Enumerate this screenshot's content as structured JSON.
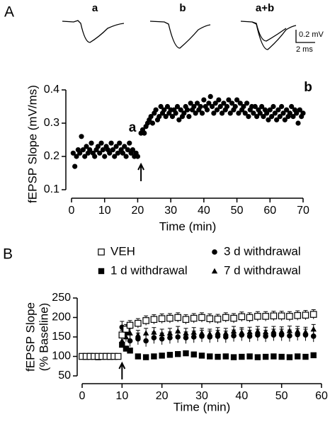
{
  "panels": [
    "A",
    "B"
  ],
  "traces": {
    "labels": [
      "a",
      "b",
      "a+b"
    ],
    "scale_y": "0.2 mV",
    "scale_x": "2 ms"
  },
  "chart_data": [
    {
      "type": "scatter",
      "x_label": "Time (min)",
      "y_label": "fEPSP Slope (mV/ms)",
      "annotations": [
        "a",
        "b"
      ],
      "arrow_x": 21,
      "color": "#000000",
      "x": [
        0.5,
        1,
        1.5,
        2,
        2.5,
        3,
        3.5,
        4,
        4.5,
        5,
        5.5,
        6,
        6.5,
        7,
        7.5,
        8,
        8.5,
        9,
        9.5,
        10,
        10.5,
        11,
        11.5,
        12,
        12.5,
        13,
        13.5,
        14,
        14.5,
        15,
        15.5,
        16,
        16.5,
        17,
        17.5,
        18,
        18.5,
        19,
        19.5,
        20,
        21,
        21.5,
        22,
        22.5,
        23,
        23.5,
        24,
        24.5,
        25,
        25.5,
        26,
        26.5,
        27,
        27.5,
        28,
        28.5,
        29,
        29.5,
        30,
        30.5,
        31,
        31.5,
        32,
        32.5,
        33,
        33.5,
        34,
        34.5,
        35,
        35.5,
        36,
        36.5,
        37,
        37.5,
        38,
        38.5,
        39,
        39.5,
        40,
        40.5,
        41,
        41.5,
        42,
        42.5,
        43,
        43.5,
        44,
        44.5,
        45,
        45.5,
        46,
        46.5,
        47,
        47.5,
        48,
        48.5,
        49,
        49.5,
        50,
        50.5,
        51,
        51.5,
        52,
        52.5,
        53,
        53.5,
        54,
        54.5,
        55,
        55.5,
        56,
        56.5,
        57,
        57.5,
        58,
        58.5,
        59,
        59.5,
        60,
        60.5,
        61,
        61.5,
        62,
        62.5,
        63,
        63.5,
        64,
        64.5,
        65,
        65.5,
        66,
        66.5,
        67,
        67.5,
        68,
        68.5,
        69,
        69.5,
        70
      ],
      "values": [
        0.21,
        0.17,
        0.2,
        0.22,
        0.21,
        0.26,
        0.22,
        0.2,
        0.23,
        0.21,
        0.22,
        0.24,
        0.21,
        0.2,
        0.22,
        0.23,
        0.21,
        0.24,
        0.22,
        0.2,
        0.23,
        0.22,
        0.21,
        0.24,
        0.22,
        0.2,
        0.23,
        0.21,
        0.24,
        0.22,
        0.21,
        0.23,
        0.2,
        0.22,
        0.24,
        0.21,
        0.22,
        0.2,
        0.21,
        0.2,
        0.27,
        0.28,
        0.27,
        0.29,
        0.3,
        0.31,
        0.32,
        0.3,
        0.33,
        0.34,
        0.31,
        0.32,
        0.35,
        0.33,
        0.34,
        0.32,
        0.35,
        0.33,
        0.34,
        0.32,
        0.34,
        0.33,
        0.35,
        0.31,
        0.34,
        0.32,
        0.33,
        0.35,
        0.34,
        0.32,
        0.36,
        0.34,
        0.35,
        0.33,
        0.36,
        0.34,
        0.35,
        0.33,
        0.37,
        0.35,
        0.34,
        0.36,
        0.38,
        0.35,
        0.33,
        0.36,
        0.34,
        0.37,
        0.35,
        0.33,
        0.36,
        0.34,
        0.35,
        0.37,
        0.33,
        0.36,
        0.34,
        0.35,
        0.37,
        0.33,
        0.36,
        0.34,
        0.35,
        0.33,
        0.36,
        0.32,
        0.34,
        0.35,
        0.33,
        0.35,
        0.32,
        0.34,
        0.33,
        0.35,
        0.32,
        0.34,
        0.33,
        0.31,
        0.34,
        0.32,
        0.35,
        0.33,
        0.31,
        0.34,
        0.32,
        0.35,
        0.33,
        0.31,
        0.34,
        0.32,
        0.33,
        0.35,
        0.32,
        0.34,
        0.33,
        0.3,
        0.34,
        0.32,
        0.33
      ],
      "xlim": [
        0,
        70
      ],
      "xticks": [
        0,
        10,
        20,
        30,
        40,
        50,
        60,
        70
      ],
      "ylim": [
        0.1,
        0.4
      ],
      "yticks": [
        0.1,
        0.2,
        0.3,
        0.4
      ]
    },
    {
      "type": "scatter-error",
      "x_label": "Time (min)",
      "y_label": [
        "fEPSP Slope",
        "(% Baseline)"
      ],
      "arrow_x": 10,
      "x": [
        0,
        1,
        2,
        3,
        4,
        5,
        6,
        7,
        8,
        9,
        10,
        11,
        12,
        14,
        16,
        18,
        20,
        22,
        24,
        26,
        28,
        30,
        32,
        34,
        36,
        38,
        40,
        42,
        44,
        46,
        48,
        50,
        52,
        54,
        56,
        58
      ],
      "series": [
        {
          "name": "3 d withdrawal",
          "marker": "circle",
          "color": "#000000",
          "values": [
            100,
            100,
            100,
            100,
            100,
            100,
            100,
            100,
            100,
            100,
            175,
            160,
            140,
            145,
            140,
            148,
            145,
            148,
            150,
            148,
            150,
            152,
            150,
            152,
            150,
            153,
            155,
            152,
            155,
            152,
            155,
            155,
            153,
            156,
            155,
            152
          ],
          "errors": [
            3,
            3,
            3,
            3,
            3,
            3,
            3,
            3,
            3,
            3,
            15,
            15,
            15,
            15,
            15,
            15,
            15,
            15,
            15,
            15,
            15,
            15,
            15,
            15,
            15,
            15,
            15,
            15,
            15,
            15,
            15,
            15,
            15,
            15,
            15,
            15
          ]
        },
        {
          "name": "7 d withdrawal",
          "marker": "triangle",
          "color": "#000000",
          "values": [
            100,
            100,
            100,
            100,
            100,
            100,
            100,
            100,
            100,
            100,
            140,
            150,
            160,
            155,
            160,
            162,
            158,
            160,
            165,
            160,
            162,
            160,
            158,
            162,
            160,
            165,
            162,
            163,
            165,
            163,
            165,
            164,
            166,
            165,
            163,
            170
          ],
          "errors": [
            3,
            3,
            3,
            3,
            3,
            3,
            3,
            3,
            3,
            3,
            12,
            12,
            12,
            12,
            12,
            12,
            12,
            12,
            12,
            12,
            12,
            12,
            12,
            12,
            12,
            12,
            12,
            12,
            12,
            12,
            12,
            12,
            12,
            12,
            12,
            12
          ]
        },
        {
          "name": "1 d withdrawal",
          "marker": "square",
          "color": "#000000",
          "values": [
            100,
            99,
            101,
            100,
            98,
            100,
            101,
            99,
            100,
            100,
            130,
            120,
            115,
            100,
            98,
            100,
            102,
            104,
            106,
            108,
            105,
            102,
            100,
            99,
            100,
            98,
            99,
            100,
            98,
            99,
            100,
            99,
            98,
            100,
            99,
            103
          ],
          "errors": [
            3,
            3,
            3,
            3,
            3,
            3,
            3,
            3,
            3,
            3,
            6,
            6,
            6,
            6,
            6,
            6,
            6,
            6,
            6,
            6,
            6,
            6,
            6,
            6,
            6,
            6,
            6,
            6,
            6,
            6,
            6,
            6,
            6,
            6,
            6,
            6
          ]
        },
        {
          "name": "VEH",
          "marker": "square-open",
          "color": "#000000",
          "values": [
            100,
            100,
            100,
            100,
            100,
            100,
            100,
            100,
            100,
            100,
            155,
            170,
            180,
            185,
            192,
            195,
            197,
            198,
            200,
            195,
            198,
            200,
            197,
            196,
            200,
            198,
            202,
            200,
            203,
            203,
            204,
            204,
            203,
            205,
            206,
            208
          ],
          "errors": [
            3,
            3,
            3,
            3,
            3,
            3,
            3,
            3,
            3,
            3,
            12,
            12,
            12,
            12,
            12,
            12,
            12,
            12,
            12,
            12,
            12,
            12,
            12,
            12,
            12,
            12,
            12,
            12,
            12,
            12,
            12,
            12,
            12,
            12,
            12,
            12
          ]
        }
      ],
      "xlim": [
        0,
        60
      ],
      "xticks": [
        0,
        10,
        20,
        30,
        40,
        50,
        60
      ],
      "ylim": [
        50,
        250
      ],
      "yticks": [
        50,
        100,
        150,
        200,
        250
      ]
    }
  ]
}
